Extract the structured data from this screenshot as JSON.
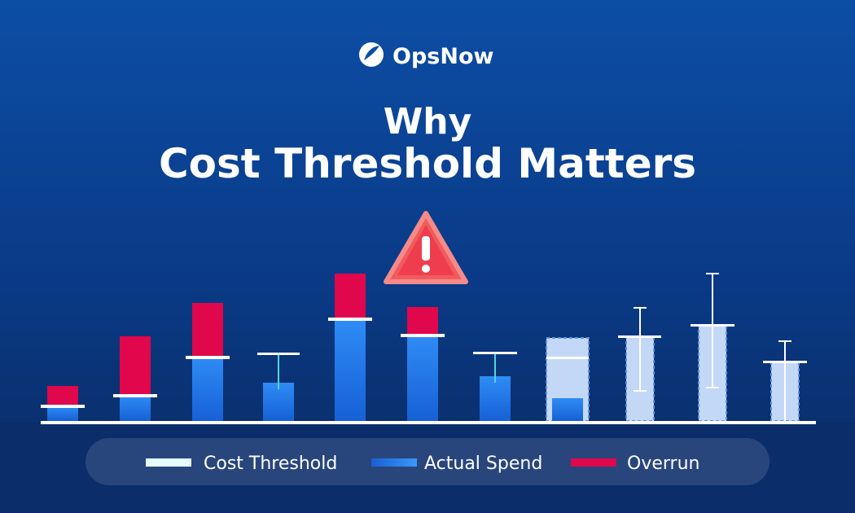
{
  "logo": {
    "text": "OpsNow"
  },
  "title": {
    "line1": "Why",
    "line2": "Cost Threshold Matters"
  },
  "legend": [
    {
      "label": "Cost Threshold"
    },
    {
      "label": "Actual Spend"
    },
    {
      "label": "Overrun"
    }
  ]
}
